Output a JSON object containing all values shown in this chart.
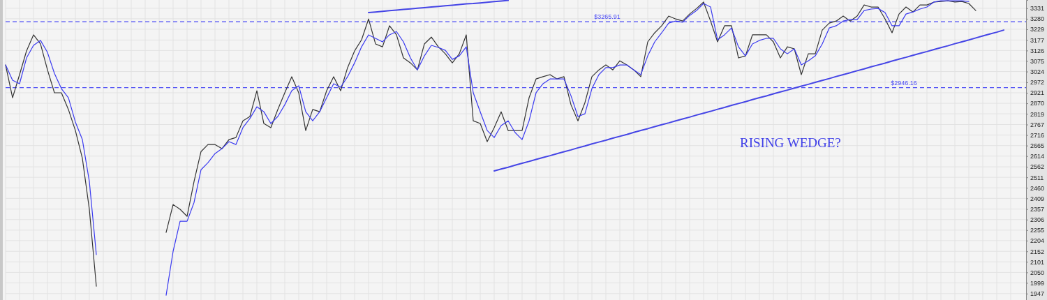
{
  "chart_data": {
    "type": "line",
    "categories": [
      null,
      null,
      null,
      null,
      null,
      null,
      null,
      null,
      null,
      null,
      null,
      null,
      null,
      null,
      null,
      null,
      null,
      null,
      null,
      null,
      null,
      null,
      null,
      null,
      null,
      null,
      null,
      null,
      null,
      null,
      null,
      null,
      null,
      null,
      null,
      null,
      null,
      null,
      null,
      null,
      null,
      null,
      null,
      null,
      null,
      null,
      null,
      null,
      null,
      null,
      null,
      null,
      null,
      null,
      null,
      null,
      null,
      null,
      null,
      null,
      null,
      null,
      null,
      null,
      null,
      null,
      null,
      null,
      null,
      null,
      null,
      null,
      null,
      null,
      null,
      null,
      null,
      null,
      null,
      null,
      null,
      null,
      null,
      null,
      null,
      null,
      null,
      null,
      null,
      null,
      null,
      null,
      null,
      null,
      null,
      null,
      null,
      null,
      null,
      null,
      null,
      null,
      null,
      null,
      null,
      null,
      null,
      null,
      null,
      null,
      null,
      null,
      null,
      null,
      null,
      null,
      null,
      null,
      null,
      null,
      null,
      null,
      null,
      null,
      null,
      null,
      null,
      null,
      null,
      null,
      null,
      null,
      null,
      null,
      null,
      null,
      null,
      null,
      null,
      null,
      null,
      null,
      null,
      null,
      null
    ],
    "series": [
      {
        "color": "#333333",
        "values": [
          3056,
          2897,
          3009,
          3124,
          3202,
          3158,
          3032,
          2921,
          2921,
          2840,
          2738,
          2603,
          2356,
          1983,
          null,
          null,
          null,
          null,
          null,
          null,
          null,
          null,
          null,
          null,
          null,
          null,
          null,
          null,
          null,
          null,
          null,
          null,
          null,
          null,
          null,
          null,
          null,
          null,
          null,
          null,
          null,
          null,
          null,
          null,
          null,
          null,
          null,
          null,
          null,
          null,
          null,
          null,
          null,
          null,
          null,
          null,
          null,
          null,
          null,
          null,
          null,
          null,
          null,
          null,
          null,
          null,
          null,
          null,
          null,
          null,
          null,
          null,
          null,
          null,
          null,
          null,
          null,
          null,
          null,
          null,
          null,
          null,
          null,
          null,
          null,
          null,
          null,
          null,
          null,
          null,
          null,
          null,
          null,
          null,
          null,
          null,
          null,
          null,
          null,
          null,
          null,
          null,
          null,
          null,
          null,
          null,
          null,
          null,
          null,
          null,
          null,
          null,
          null,
          null,
          null,
          null,
          null,
          null,
          null,
          null,
          null,
          null,
          null,
          null,
          null,
          null,
          null,
          null,
          null,
          null,
          null,
          null,
          null,
          null,
          null,
          null,
          null,
          null,
          null,
          null,
          null,
          null,
          null,
          null,
          null
        ]
      },
      {
        "color": "#333333",
        "values": [
          null,
          null,
          null,
          null,
          null,
          null,
          null,
          null,
          null,
          null,
          null,
          null,
          null,
          null,
          null,
          null,
          null,
          null,
          null,
          null,
          null,
          null,
          null,
          2244,
          2379,
          2356,
          2322,
          2491,
          2636,
          2670,
          2670,
          2650,
          2694,
          2704,
          2785,
          2806,
          2931,
          2772,
          2752,
          2840,
          2921,
          2999,
          2921,
          2738,
          2840,
          2829,
          2931,
          2999,
          2931,
          3043,
          3124,
          3178,
          3279,
          3158,
          3144,
          3246,
          3202,
          3090,
          3066,
          3032,
          3158,
          3191,
          3144,
          3110,
          3066,
          3110,
          3202,
          2785,
          2772,
          2684,
          2752,
          2829,
          2738,
          2738,
          2738,
          2897,
          2988,
          2999,
          3009,
          2988,
          2999,
          2863,
          2785,
          2873,
          2999,
          3032,
          3056,
          3032,
          3076,
          3056,
          3032,
          2999,
          3168,
          3212,
          3246,
          3293,
          3279,
          3269,
          3303,
          3330,
          3361,
          3269,
          3168,
          3246,
          3246,
          3090,
          3100,
          3202,
          3202,
          3202,
          3168,
          3090,
          3144,
          3134,
          3009,
          3110,
          3110,
          3225,
          3259,
          3269,
          3293,
          3269,
          3293,
          3347,
          3337,
          3337,
          3279,
          3212,
          3303,
          3337,
          3313,
          3347,
          3347,
          3361,
          3364,
          3367,
          3361,
          3364,
          3354,
          3320,
          null,
          null,
          null,
          null,
          null
        ]
      },
      {
        "color": "#3a3af0",
        "values": [
          3056,
          2982,
          2965,
          3090,
          3151,
          3175,
          3117,
          3015,
          2941,
          2897,
          2779,
          2694,
          2491,
          2136,
          null,
          null,
          null,
          null,
          null,
          null,
          null,
          null,
          null,
          null,
          null,
          null,
          null,
          null,
          null,
          null,
          null,
          null,
          null,
          null,
          null,
          null,
          null,
          null,
          null,
          null,
          null,
          null,
          null,
          null,
          null,
          null,
          null,
          null,
          null,
          null,
          null,
          null,
          null,
          null,
          null,
          null,
          null,
          null,
          null,
          null,
          null,
          null,
          null,
          null,
          null,
          null,
          null,
          null,
          null,
          null,
          null,
          null,
          null,
          null,
          null,
          null,
          null,
          null,
          null,
          null,
          null,
          null,
          null,
          null,
          null,
          null,
          null,
          null,
          null,
          null,
          null,
          null,
          null,
          null,
          null,
          null,
          null,
          null,
          null,
          null,
          null,
          null,
          null,
          null,
          null,
          null,
          null,
          null,
          null,
          null,
          null,
          null,
          null,
          null,
          null,
          null,
          null,
          null,
          null,
          null,
          null,
          null,
          null,
          null,
          null,
          null,
          null,
          null,
          null,
          null,
          null,
          null,
          null,
          null,
          null,
          null,
          null,
          null,
          null,
          null,
          null,
          null,
          null,
          null,
          null
        ]
      },
      {
        "color": "#3a3af0",
        "values": [
          null,
          null,
          null,
          null,
          null,
          null,
          null,
          null,
          null,
          null,
          null,
          null,
          null,
          null,
          null,
          null,
          null,
          null,
          null,
          null,
          null,
          null,
          null,
          1939,
          2152,
          2298,
          2298,
          2389,
          2548,
          2582,
          2626,
          2650,
          2684,
          2670,
          2752,
          2796,
          2853,
          2829,
          2772,
          2806,
          2863,
          2931,
          2955,
          2829,
          2785,
          2829,
          2897,
          2965,
          2948,
          2999,
          3066,
          3144,
          3202,
          3185,
          3168,
          3202,
          3218,
          3168,
          3090,
          3032,
          3100,
          3151,
          3141,
          3127,
          3083,
          3100,
          3144,
          2921,
          2829,
          2738,
          2704,
          2762,
          2785,
          2728,
          2694,
          2785,
          2921,
          2965,
          2988,
          2988,
          2988,
          2907,
          2806,
          2819,
          2941,
          3009,
          3043,
          3043,
          3056,
          3056,
          3032,
          3009,
          3100,
          3168,
          3212,
          3259,
          3269,
          3263,
          3296,
          3320,
          3354,
          3337,
          3178,
          3202,
          3235,
          3144,
          3100,
          3158,
          3175,
          3185,
          3185,
          3134,
          3110,
          3134,
          3056,
          3076,
          3100,
          3158,
          3235,
          3246,
          3269,
          3276,
          3276,
          3320,
          3327,
          3330,
          3310,
          3246,
          3246,
          3303,
          3313,
          3327,
          3337,
          3361,
          3367,
          3367,
          3367,
          3367,
          3364,
          null,
          null,
          null,
          null,
          null,
          null
        ]
      },
      {
        "color": "#4545e6",
        "values": [
          null,
          null,
          null,
          null,
          null,
          null,
          null,
          null,
          null,
          null,
          null,
          null,
          null,
          null,
          null,
          null,
          null,
          null,
          null,
          null,
          null,
          null,
          null,
          null,
          null,
          null,
          null,
          null,
          null,
          null,
          null,
          null,
          null,
          null,
          null,
          null,
          null,
          null,
          null,
          null,
          null,
          null,
          null,
          null,
          null,
          null,
          null,
          null,
          null,
          null,
          null,
          null,
          3310,
          3313,
          3316,
          3319,
          3322,
          3325,
          3328,
          3331,
          3334,
          3337,
          3340,
          3343,
          3346,
          3349,
          3352,
          3354,
          3357,
          3360,
          3363,
          3366,
          3369,
          null,
          null,
          null,
          null,
          null,
          null,
          null,
          null,
          null,
          null,
          null,
          null,
          null,
          null,
          null,
          null,
          null,
          null,
          null,
          null,
          null,
          null,
          null,
          null,
          null,
          null,
          null,
          null,
          null,
          null,
          null,
          null,
          null,
          null,
          null,
          null,
          null,
          null,
          null,
          null,
          null,
          null,
          null,
          null,
          null,
          null,
          null,
          null,
          null,
          null,
          null,
          null,
          null,
          null,
          null,
          null,
          null,
          null,
          null,
          null,
          null,
          null,
          null,
          null,
          null,
          null,
          null,
          null,
          null,
          null,
          null,
          null
        ]
      },
      {
        "color": "#4545e6",
        "values": [
          null,
          null,
          null,
          null,
          null,
          null,
          null,
          null,
          null,
          null,
          null,
          null,
          null,
          null,
          null,
          null,
          null,
          null,
          null,
          null,
          null,
          null,
          null,
          null,
          null,
          null,
          null,
          null,
          null,
          null,
          null,
          null,
          null,
          null,
          null,
          null,
          null,
          null,
          null,
          null,
          null,
          null,
          null,
          null,
          null,
          null,
          null,
          null,
          null,
          null,
          null,
          null,
          null,
          null,
          null,
          null,
          null,
          null,
          null,
          null,
          null,
          null,
          null,
          null,
          null,
          null,
          null,
          null,
          null,
          null,
          2542,
          2551,
          2560,
          2570,
          2579,
          2588,
          2598,
          2607,
          2616,
          2626,
          2635,
          2644,
          2654,
          2663,
          2673,
          2682,
          2691,
          2701,
          2710,
          2719,
          2729,
          2738,
          2747,
          2757,
          2766,
          2775,
          2785,
          2794,
          2803,
          2813,
          2822,
          2831,
          2841,
          2850,
          2860,
          2869,
          2878,
          2888,
          2897,
          2906,
          2916,
          2925,
          2934,
          2944,
          2953,
          2962,
          2972,
          2981,
          2990,
          3000,
          3009,
          3018,
          3028,
          3037,
          3047,
          3056,
          3065,
          3075,
          3084,
          3093,
          3103,
          3112,
          3121,
          3131,
          3140,
          3149,
          3159,
          3168,
          3177,
          3187,
          3197,
          3206,
          3215,
          3225,
          null
        ]
      }
    ],
    "ylim": [
      1916,
      3371
    ],
    "yticks": [
      1947,
      1999,
      2050,
      2101,
      2152,
      2204,
      2255,
      2306,
      2357,
      2409,
      2460,
      2511,
      2562,
      2614,
      2665,
      2716,
      2767,
      2819,
      2870,
      2921,
      2972,
      3024,
      3075,
      3126,
      3177,
      3229,
      3280,
      3331
    ],
    "ref_lines": [
      {
        "axis": "y",
        "value": 3265.91,
        "label": "$3265.91",
        "color": "#4a4af5",
        "line_style": "dashed"
      },
      {
        "axis": "y",
        "value": 2946.16,
        "label": "$2946.16",
        "color": "#4a4af5",
        "line_style": "dashed"
      }
    ],
    "annotations": [
      "RISING WEDGE?"
    ],
    "grid": true,
    "tick_labels": "y",
    "line_style": "solid",
    "marker": "none"
  }
}
